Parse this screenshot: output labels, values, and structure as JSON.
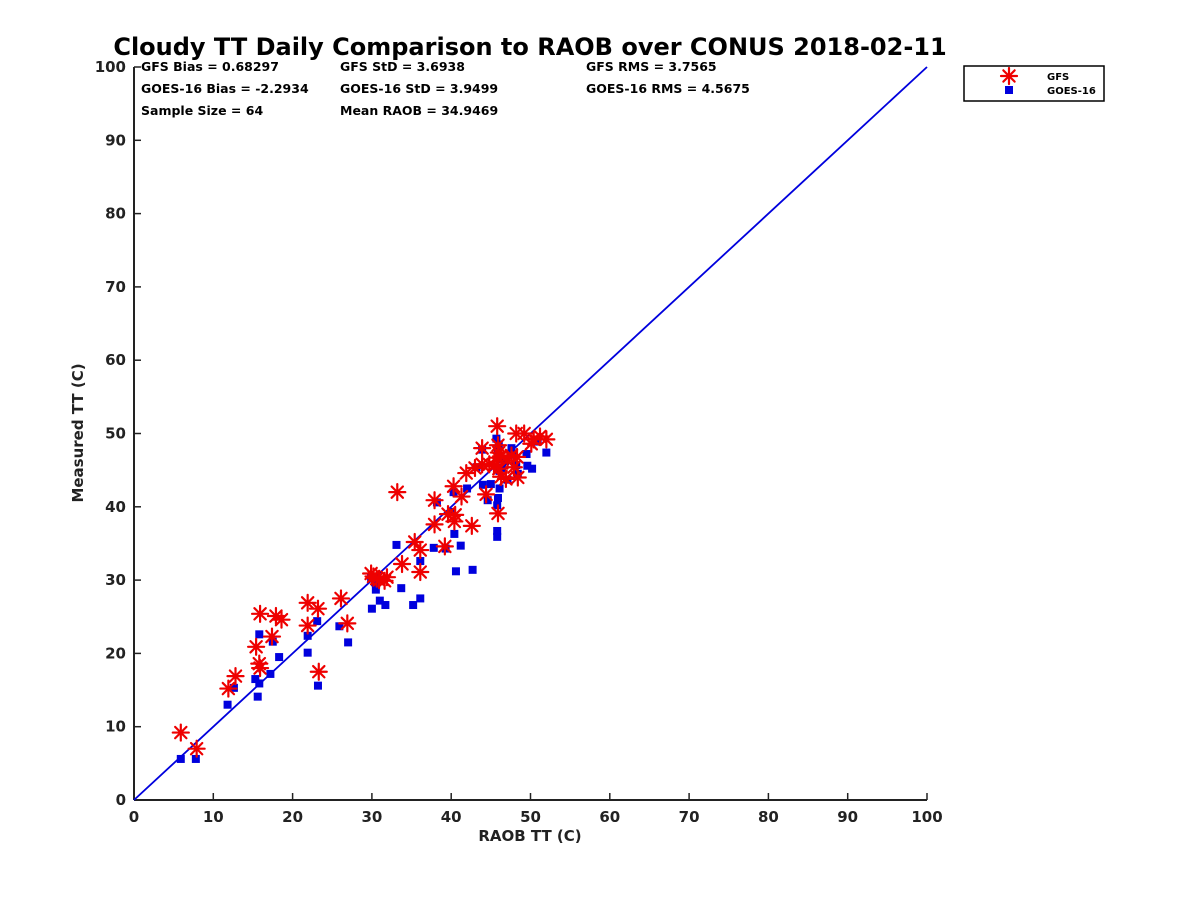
{
  "chart_data": {
    "type": "scatter",
    "title": "Cloudy TT Daily Comparison to RAOB over CONUS 2018-02-11",
    "xlabel": "RAOB TT (C)",
    "ylabel": "Measured TT (C)",
    "xlim": [
      0,
      100
    ],
    "ylim": [
      0,
      100
    ],
    "xticks": [
      "0",
      "10",
      "20",
      "30",
      "40",
      "50",
      "60",
      "70",
      "80",
      "90",
      "100"
    ],
    "yticks": [
      "0",
      "10",
      "20",
      "30",
      "40",
      "50",
      "60",
      "70",
      "80",
      "90",
      "100"
    ],
    "grid": false,
    "legend_position": "top-right outside",
    "reference_line": {
      "from": [
        0,
        0
      ],
      "to": [
        100,
        100
      ],
      "color": "#0000dd"
    },
    "stats": {
      "gfs_bias": "GFS Bias = 0.68297",
      "gfs_std": "GFS StD = 3.6938",
      "gfs_rms": "GFS RMS = 3.7565",
      "goes_bias": "GOES-16 Bias = -2.2934",
      "goes_std": "GOES-16 StD = 3.9499",
      "goes_rms": "GOES-16 RMS = 4.5675",
      "sample_size": "Sample Size = 64",
      "mean_raob": "Mean RAOB = 34.9469"
    },
    "series": [
      {
        "name": "GFS",
        "marker": "asterisk",
        "color": "#ee0000",
        "points": [
          [
            5.9,
            9.2
          ],
          [
            7.9,
            7.0
          ],
          [
            11.9,
            15.2
          ],
          [
            12.8,
            16.9
          ],
          [
            15.4,
            20.9
          ],
          [
            15.8,
            18.6
          ],
          [
            15.9,
            18.0
          ],
          [
            15.9,
            25.4
          ],
          [
            17.4,
            22.3
          ],
          [
            17.9,
            25.1
          ],
          [
            18.6,
            24.6
          ],
          [
            21.9,
            26.9
          ],
          [
            21.9,
            23.8
          ],
          [
            23.2,
            26.1
          ],
          [
            23.3,
            17.5
          ],
          [
            26.1,
            27.5
          ],
          [
            26.9,
            24.1
          ],
          [
            29.9,
            30.9
          ],
          [
            30.2,
            30.5
          ],
          [
            30.9,
            30.0
          ],
          [
            31.6,
            29.9
          ],
          [
            31.9,
            30.4
          ],
          [
            33.2,
            42.0
          ],
          [
            33.8,
            32.2
          ],
          [
            35.4,
            35.2
          ],
          [
            36.1,
            34.1
          ],
          [
            36.1,
            31.1
          ],
          [
            37.9,
            37.6
          ],
          [
            37.9,
            40.9
          ],
          [
            39.2,
            34.6
          ],
          [
            39.6,
            39.0
          ],
          [
            40.3,
            42.8
          ],
          [
            40.4,
            38.0
          ],
          [
            40.5,
            38.9
          ],
          [
            41.3,
            41.4
          ],
          [
            41.9,
            44.6
          ],
          [
            42.6,
            37.4
          ],
          [
            43.0,
            45.3
          ],
          [
            43.9,
            45.8
          ],
          [
            43.9,
            48.0
          ],
          [
            44.4,
            41.7
          ],
          [
            44.8,
            45.8
          ],
          [
            45.8,
            51.0
          ],
          [
            45.9,
            39.1
          ],
          [
            45.9,
            46.7
          ],
          [
            45.9,
            48.4
          ],
          [
            46.0,
            47.4
          ],
          [
            46.0,
            45.2
          ],
          [
            46.3,
            44.1
          ],
          [
            46.3,
            46.9
          ],
          [
            46.9,
            43.8
          ],
          [
            47.1,
            46.3
          ],
          [
            47.6,
            47.0
          ],
          [
            48.2,
            50.0
          ],
          [
            48.3,
            46.8
          ],
          [
            48.4,
            44.0
          ],
          [
            49.2,
            50.0
          ],
          [
            50.1,
            48.6
          ],
          [
            50.4,
            49.2
          ],
          [
            51.2,
            49.6
          ],
          [
            52.0,
            49.2
          ],
          [
            45.4,
            45.6
          ],
          [
            47.9,
            45.4
          ],
          [
            30.6,
            30.2
          ]
        ]
      },
      {
        "name": "GOES-16",
        "marker": "square",
        "color": "#0000dd",
        "points": [
          [
            5.9,
            5.6
          ],
          [
            7.8,
            5.6
          ],
          [
            11.8,
            13.0
          ],
          [
            12.6,
            15.3
          ],
          [
            15.3,
            16.5
          ],
          [
            15.6,
            14.1
          ],
          [
            15.8,
            15.9
          ],
          [
            15.8,
            22.6
          ],
          [
            17.2,
            17.2
          ],
          [
            17.5,
            21.6
          ],
          [
            18.3,
            19.5
          ],
          [
            21.9,
            20.1
          ],
          [
            21.9,
            22.4
          ],
          [
            23.1,
            24.4
          ],
          [
            23.2,
            15.6
          ],
          [
            25.9,
            23.7
          ],
          [
            27.0,
            21.5
          ],
          [
            29.9,
            30.3
          ],
          [
            30.0,
            26.1
          ],
          [
            30.5,
            28.7
          ],
          [
            31.0,
            27.2
          ],
          [
            31.7,
            26.6
          ],
          [
            33.1,
            34.8
          ],
          [
            33.7,
            28.9
          ],
          [
            35.2,
            26.6
          ],
          [
            36.1,
            32.6
          ],
          [
            36.1,
            27.5
          ],
          [
            37.8,
            34.4
          ],
          [
            38.2,
            40.6
          ],
          [
            39.3,
            34.3
          ],
          [
            40.1,
            39.3
          ],
          [
            40.3,
            42.0
          ],
          [
            40.4,
            36.3
          ],
          [
            40.6,
            31.2
          ],
          [
            41.2,
            34.7
          ],
          [
            42.0,
            42.5
          ],
          [
            42.7,
            31.4
          ],
          [
            43.2,
            45.4
          ],
          [
            43.9,
            47.8
          ],
          [
            44.0,
            43.0
          ],
          [
            44.6,
            40.9
          ],
          [
            45.0,
            43.1
          ],
          [
            45.7,
            49.3
          ],
          [
            45.8,
            36.7
          ],
          [
            45.8,
            35.9
          ],
          [
            45.8,
            40.2
          ],
          [
            45.9,
            47.7
          ],
          [
            45.9,
            41.2
          ],
          [
            46.1,
            44.9
          ],
          [
            46.1,
            42.5
          ],
          [
            46.4,
            45.3
          ],
          [
            46.8,
            46.2
          ],
          [
            47.1,
            43.7
          ],
          [
            47.9,
            47.1
          ],
          [
            48.2,
            45.7
          ],
          [
            48.4,
            44.5
          ],
          [
            49.5,
            47.2
          ],
          [
            49.6,
            45.6
          ],
          [
            50.2,
            45.2
          ],
          [
            50.9,
            48.9
          ],
          [
            52.0,
            47.4
          ],
          [
            46.0,
            48.5
          ],
          [
            47.6,
            48.0
          ],
          [
            30.4,
            29.7
          ]
        ]
      }
    ]
  }
}
